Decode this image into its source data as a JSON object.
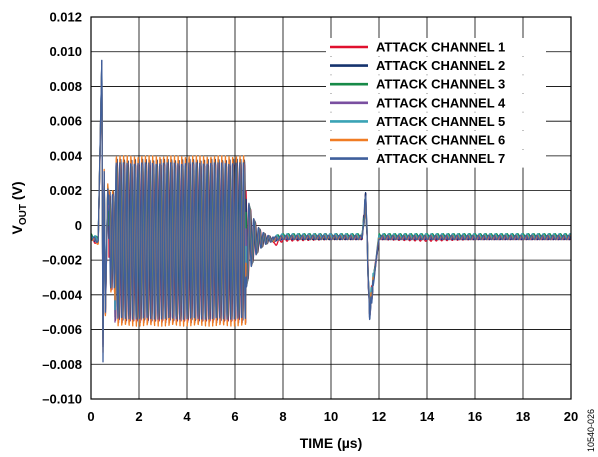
{
  "chart_data": {
    "type": "line",
    "xlabel": "TIME (µs)",
    "ylabel_main": "V",
    "ylabel_sub": "OUT",
    "ylabel_unit": " (V)",
    "xlim": [
      0,
      20
    ],
    "ylim": [
      -0.01,
      0.012
    ],
    "x_ticks": [
      {
        "value": 0,
        "label": "0"
      },
      {
        "value": 2,
        "label": "2"
      },
      {
        "value": 4,
        "label": "4"
      },
      {
        "value": 6,
        "label": "6"
      },
      {
        "value": 8,
        "label": "8"
      },
      {
        "value": 10,
        "label": "10"
      },
      {
        "value": 12,
        "label": "12"
      },
      {
        "value": 14,
        "label": "14"
      },
      {
        "value": 16,
        "label": "16"
      },
      {
        "value": 18,
        "label": "18"
      },
      {
        "value": 20,
        "label": "20"
      }
    ],
    "y_ticks": [
      {
        "value": 0.012,
        "label": "0.012"
      },
      {
        "value": 0.01,
        "label": "0.010"
      },
      {
        "value": 0.008,
        "label": "0.008"
      },
      {
        "value": 0.006,
        "label": "0.006"
      },
      {
        "value": 0.004,
        "label": "0.004"
      },
      {
        "value": 0.002,
        "label": "0.002"
      },
      {
        "value": 0,
        "label": "0"
      },
      {
        "value": -0.002,
        "label": "–0.002"
      },
      {
        "value": -0.004,
        "label": "–0.004"
      },
      {
        "value": -0.006,
        "label": "–0.006"
      },
      {
        "value": -0.008,
        "label": "–0.008"
      },
      {
        "value": -0.01,
        "label": "–0.010"
      }
    ],
    "grid": true,
    "legend_position": "top-right",
    "series": [
      {
        "name": "ATTACK CHANNEL 1",
        "color": "#e0102e",
        "x": [
          0,
          0.3,
          0.45,
          0.5,
          0.55,
          0.6,
          0.7,
          1.0,
          2.0,
          3.0,
          4.0,
          5.0,
          6.0,
          6.3,
          6.6,
          7.0,
          8.0,
          10.0,
          11.3,
          11.45,
          11.6,
          12.0,
          14.0,
          16.0,
          18.0,
          20.0
        ],
        "y": [
          -0.0008,
          -0.001,
          0.009,
          -0.006,
          0.003,
          -0.005,
          0.002,
          -0.005,
          0.0035,
          -0.0055,
          0.0035,
          -0.0055,
          0.0035,
          -0.005,
          0.0005,
          -0.0016,
          -0.0008,
          -0.0007,
          -0.0007,
          0.0016,
          -0.0048,
          -0.0007,
          -0.0008,
          -0.0007,
          -0.0007,
          -0.0007
        ]
      },
      {
        "name": "ATTACK CHANNEL 2",
        "color": "#15336e",
        "x": [
          0,
          0.3,
          0.45,
          0.5,
          0.55,
          0.6,
          0.7,
          1.0,
          2.0,
          3.0,
          4.0,
          5.0,
          6.0,
          6.3,
          6.6,
          7.0,
          8.0,
          10.0,
          11.3,
          11.45,
          11.6,
          12.0,
          14.0,
          16.0,
          18.0,
          20.0
        ],
        "y": [
          -0.0007,
          -0.0009,
          0.0094,
          -0.007,
          0.003,
          -0.005,
          0.002,
          -0.005,
          0.0038,
          -0.0055,
          0.0038,
          -0.0055,
          0.0037,
          -0.0052,
          0.0008,
          -0.001,
          -0.0007,
          -0.0007,
          -0.0007,
          0.0017,
          -0.005,
          -0.0007,
          -0.0007,
          -0.0007,
          -0.0007,
          -0.0007
        ]
      },
      {
        "name": "ATTACK CHANNEL 3",
        "color": "#178a48",
        "x": [
          0,
          0.3,
          0.45,
          0.5,
          0.55,
          0.6,
          0.7,
          1.0,
          2.0,
          3.0,
          4.0,
          5.0,
          6.0,
          6.3,
          6.6,
          7.0,
          8.0,
          10.0,
          11.3,
          11.45,
          11.6,
          12.0,
          14.0,
          16.0,
          18.0,
          20.0
        ],
        "y": [
          -0.0006,
          -0.0008,
          0.0092,
          -0.0065,
          0.0028,
          -0.0048,
          0.0022,
          -0.0052,
          0.0034,
          -0.0054,
          0.0034,
          -0.0054,
          0.0034,
          -0.005,
          0.0006,
          -0.0009,
          -0.0006,
          -0.0006,
          -0.0006,
          0.0015,
          -0.0049,
          -0.0006,
          -0.0006,
          -0.0006,
          -0.0006,
          -0.0006
        ]
      },
      {
        "name": "ATTACK CHANNEL 4",
        "color": "#7a4fa0",
        "x": [
          0,
          0.3,
          0.45,
          0.5,
          0.55,
          0.6,
          0.7,
          1.0,
          2.0,
          3.0,
          4.0,
          5.0,
          6.0,
          6.3,
          6.6,
          7.0,
          8.0,
          10.0,
          11.3,
          11.45,
          11.6,
          12.0,
          14.0,
          16.0,
          18.0,
          20.0
        ],
        "y": [
          -0.0007,
          -0.0009,
          0.0093,
          -0.0068,
          0.0029,
          -0.0049,
          0.0021,
          -0.0051,
          0.0036,
          -0.0056,
          0.0036,
          -0.0056,
          0.0036,
          -0.0051,
          0.0007,
          -0.001,
          -0.0007,
          -0.0006,
          -0.0007,
          0.0016,
          -0.0051,
          -0.0007,
          -0.0007,
          -0.0007,
          -0.0007,
          -0.0007
        ]
      },
      {
        "name": "ATTACK CHANNEL 5",
        "color": "#3aa3b5",
        "x": [
          0,
          0.3,
          0.45,
          0.5,
          0.55,
          0.6,
          0.7,
          1.0,
          2.0,
          3.0,
          4.0,
          5.0,
          6.0,
          6.3,
          6.6,
          7.0,
          8.0,
          10.0,
          11.3,
          11.45,
          11.6,
          12.0,
          14.0,
          16.0,
          18.0,
          20.0
        ],
        "y": [
          -0.0006,
          -0.0008,
          0.0091,
          -0.0062,
          0.003,
          -0.0047,
          0.0024,
          -0.005,
          0.0035,
          -0.0053,
          0.0035,
          -0.0053,
          0.0035,
          -0.0049,
          0.0009,
          -0.0009,
          -0.0006,
          -0.0006,
          -0.0006,
          0.0016,
          -0.0047,
          -0.0006,
          -0.0006,
          -0.0006,
          -0.0006,
          -0.0006
        ]
      },
      {
        "name": "ATTACK CHANNEL 6",
        "color": "#f07c24",
        "x": [
          0,
          0.3,
          0.45,
          0.5,
          0.55,
          0.6,
          0.7,
          1.0,
          2.0,
          3.0,
          4.0,
          5.0,
          6.0,
          6.3,
          6.6,
          7.0,
          8.0,
          10.0,
          11.3,
          11.45,
          11.6,
          12.0,
          14.0,
          16.0,
          18.0,
          20.0
        ],
        "y": [
          -0.0007,
          -0.001,
          0.0092,
          -0.0072,
          0.0032,
          -0.0052,
          0.0025,
          -0.0055,
          0.004,
          -0.0058,
          0.004,
          -0.0058,
          0.0039,
          -0.0054,
          0.0008,
          -0.001,
          -0.0007,
          -0.0007,
          -0.0007,
          0.0016,
          -0.005,
          -0.0007,
          -0.0007,
          -0.0007,
          -0.0007,
          -0.0007
        ]
      },
      {
        "name": "ATTACK CHANNEL 7",
        "color": "#3f5f9c",
        "x": [
          0,
          0.3,
          0.45,
          0.5,
          0.55,
          0.6,
          0.7,
          1.0,
          2.0,
          3.0,
          4.0,
          5.0,
          6.0,
          6.3,
          6.6,
          7.0,
          8.0,
          10.0,
          11.3,
          11.45,
          11.6,
          12.0,
          14.0,
          16.0,
          18.0,
          20.0
        ],
        "y": [
          -0.0007,
          -0.0009,
          0.0095,
          -0.0078,
          0.003,
          -0.005,
          0.0022,
          -0.0052,
          0.0036,
          -0.0054,
          0.0036,
          -0.0054,
          0.0036,
          -0.0052,
          0.0007,
          -0.0009,
          -0.0007,
          -0.0007,
          -0.0007,
          0.0017,
          -0.0052,
          -0.0007,
          -0.0007,
          -0.0007,
          -0.0007,
          -0.0007
        ]
      }
    ]
  },
  "figure_code": "10540-026"
}
